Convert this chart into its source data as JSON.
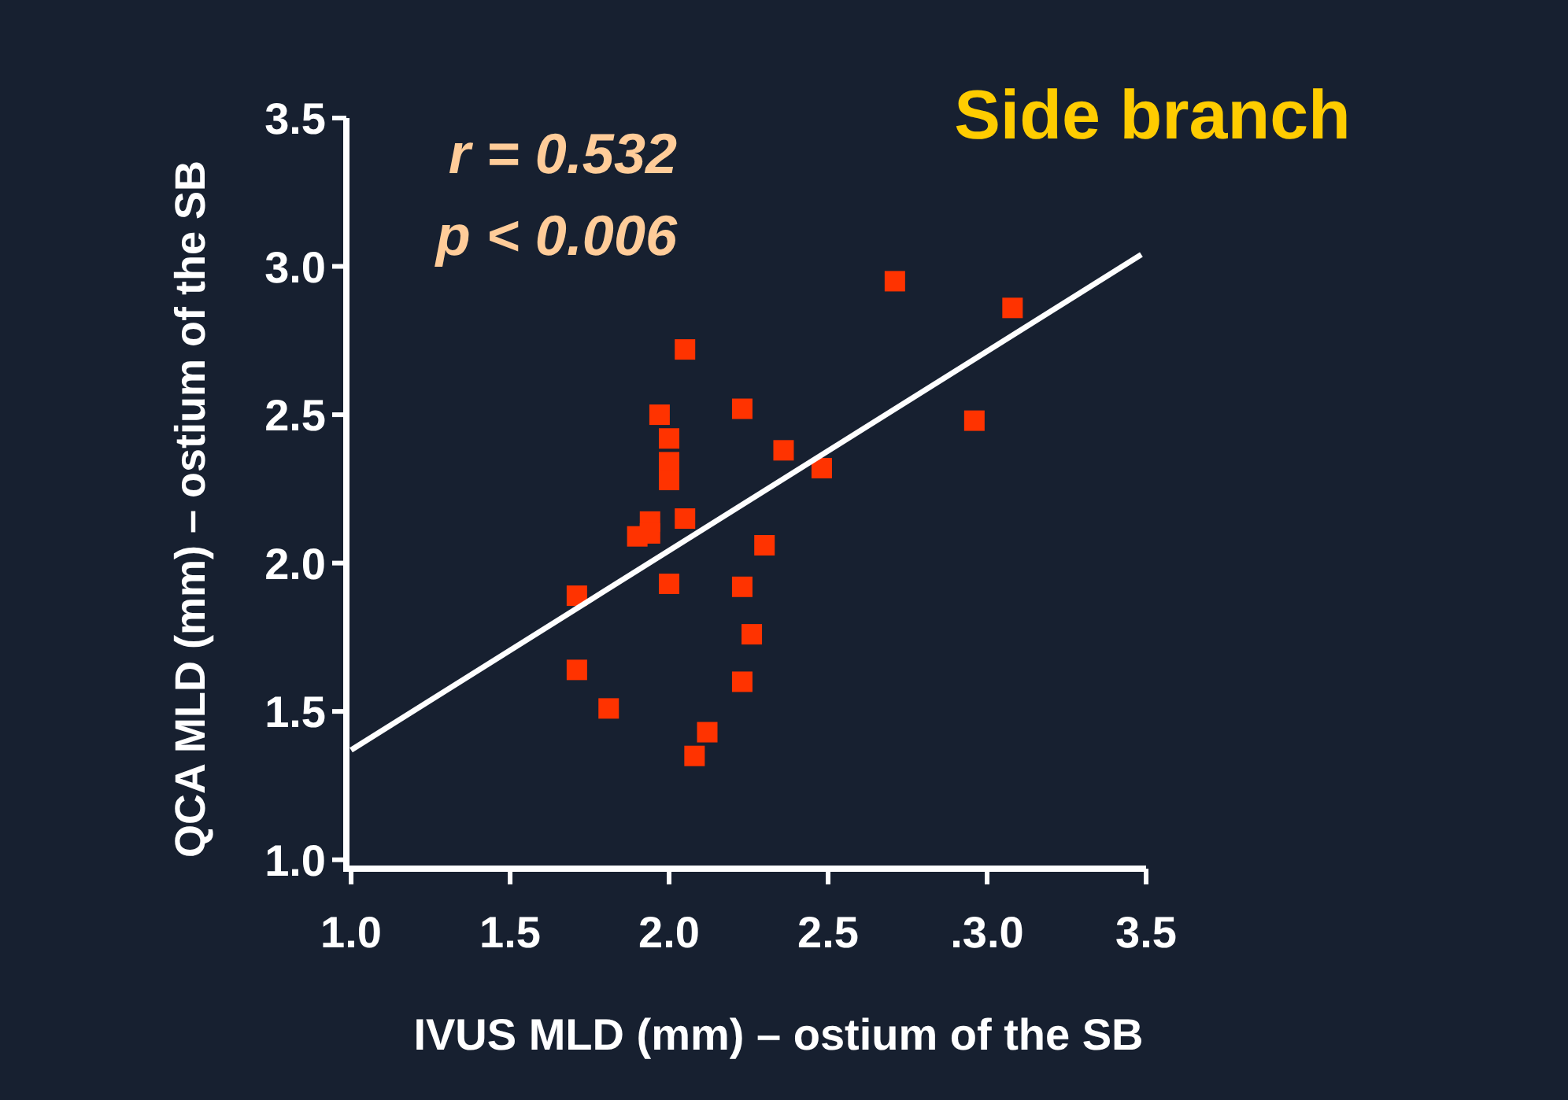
{
  "chart_data": {
    "type": "scatter",
    "title": "Side branch",
    "xlabel": "IVUS MLD (mm) – ostium of the SB",
    "ylabel": "QCA MLD (mm) – ostium of the SB",
    "annotations": [
      "r = 0.532",
      "p < 0.006"
    ],
    "xlim": [
      0.99,
      3.5
    ],
    "ylim": [
      0.97,
      3.5
    ],
    "xticks": [
      {
        "value": 1,
        "label": "1.0"
      },
      1.5,
      {
        "value": 2,
        "label": "2.0"
      },
      2.5,
      {
        "value": 3,
        "label": ".3.0"
      },
      3.5
    ],
    "yticks": [
      {
        "value": 1,
        "label": "1.0"
      },
      1.5,
      {
        "value": 2,
        "label": "2.0"
      },
      2.5,
      {
        "value": 3,
        "label": "3.0"
      },
      3.5
    ],
    "grid": false,
    "marker": "square",
    "series": [
      {
        "color": "#ff3300",
        "x": [
          2.05,
          1.97,
          2.23,
          2.0,
          2.0,
          2.0,
          2.36,
          2.48,
          1.94,
          1.94,
          1.9,
          2.05,
          2.3,
          1.71,
          2.0,
          2.23,
          2.26,
          1.71,
          2.23,
          1.81,
          2.12,
          2.08,
          2.71,
          3.08,
          2.96
        ],
        "values": [
          2.72,
          2.5,
          2.52,
          2.42,
          2.34,
          2.28,
          2.38,
          2.32,
          2.14,
          2.1,
          2.09,
          2.15,
          2.06,
          1.89,
          1.93,
          1.92,
          1.76,
          1.64,
          1.6,
          1.51,
          1.43,
          1.35,
          2.95,
          2.86,
          2.48
        ]
      },
      {
        "type": "line",
        "color": "#ffffff",
        "x": [
          1.0,
          3.485
        ],
        "values": [
          1.37,
          3.04
        ],
        "marker": "none",
        "line_style": "solid"
      }
    ]
  }
}
